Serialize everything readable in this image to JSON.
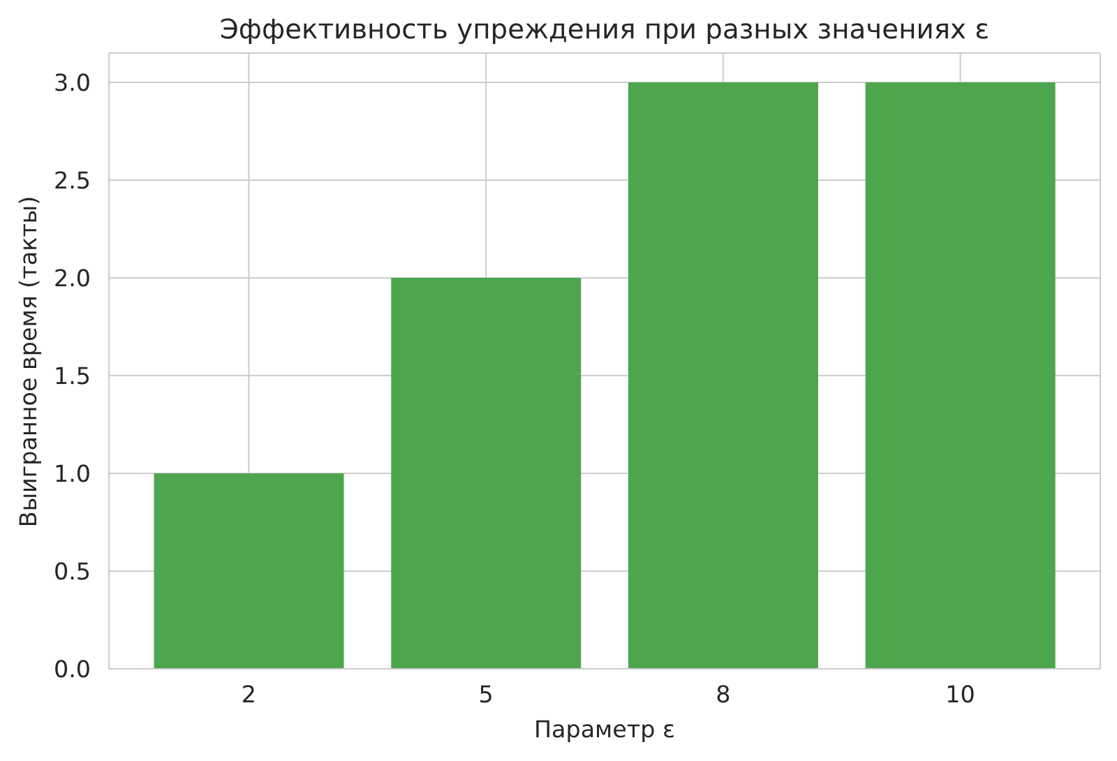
{
  "chart_data": {
    "type": "bar",
    "title": "Эффективность упреждения при разных значениях ε",
    "xlabel": "Параметр ε",
    "ylabel": "Выигранное время (такты)",
    "categories": [
      "2",
      "5",
      "8",
      "10"
    ],
    "values": [
      1,
      2,
      3,
      3
    ],
    "color": "#4da64d",
    "ylim": [
      0,
      3.15
    ],
    "yticks": [
      {
        "value": 0,
        "label": "0.0"
      },
      0.5,
      {
        "value": 1,
        "label": "1.0"
      },
      1.5,
      {
        "value": 2,
        "label": "2.0"
      },
      2.5,
      {
        "value": 3,
        "label": "3.0"
      }
    ],
    "grid": true
  }
}
